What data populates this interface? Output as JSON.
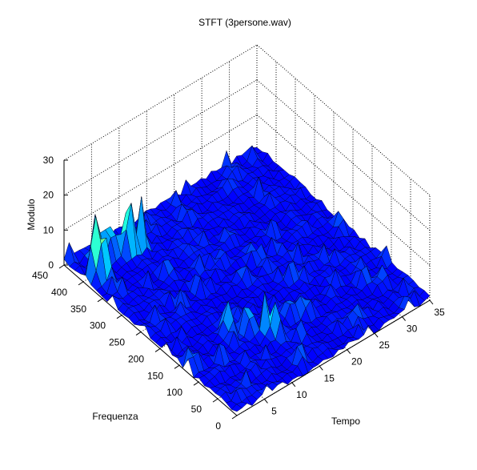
{
  "chart_data": {
    "type": "surface",
    "title": "STFT (3persone.wav)",
    "xlabel": "Tempo",
    "ylabel": "Frequenza",
    "zlabel": "Modulo",
    "xlim": [
      0,
      35
    ],
    "ylim": [
      0,
      450
    ],
    "zlim": [
      0,
      30
    ],
    "x_ticks": [
      "5",
      "10",
      "15",
      "20",
      "25",
      "30",
      "35"
    ],
    "y_ticks": [
      "0",
      "50",
      "100",
      "150",
      "200",
      "250",
      "300",
      "350",
      "400",
      "450"
    ],
    "z_ticks": [
      "0",
      "10",
      "20",
      "30"
    ],
    "grid": true,
    "colormap": "jet",
    "peaks": [
      {
        "x": 1.5,
        "y": 390,
        "z": 20
      },
      {
        "x": 2.5,
        "y": 385,
        "z": 18
      },
      {
        "x": 4,
        "y": 420,
        "z": 16
      },
      {
        "x": 6,
        "y": 415,
        "z": 18
      },
      {
        "x": 8,
        "y": 400,
        "z": 27
      },
      {
        "x": 10,
        "y": 395,
        "z": 15
      },
      {
        "x": 9,
        "y": 150,
        "z": 11
      },
      {
        "x": 11.5,
        "y": 135,
        "z": 13
      },
      {
        "x": 13,
        "y": 110,
        "z": 12
      },
      {
        "x": 14,
        "y": 95,
        "z": 10
      },
      {
        "x": 18,
        "y": 120,
        "z": 8
      },
      {
        "x": 20,
        "y": 105,
        "z": 6
      },
      {
        "x": 30,
        "y": 100,
        "z": 6
      },
      {
        "x": 32,
        "y": 80,
        "z": 5
      }
    ]
  }
}
